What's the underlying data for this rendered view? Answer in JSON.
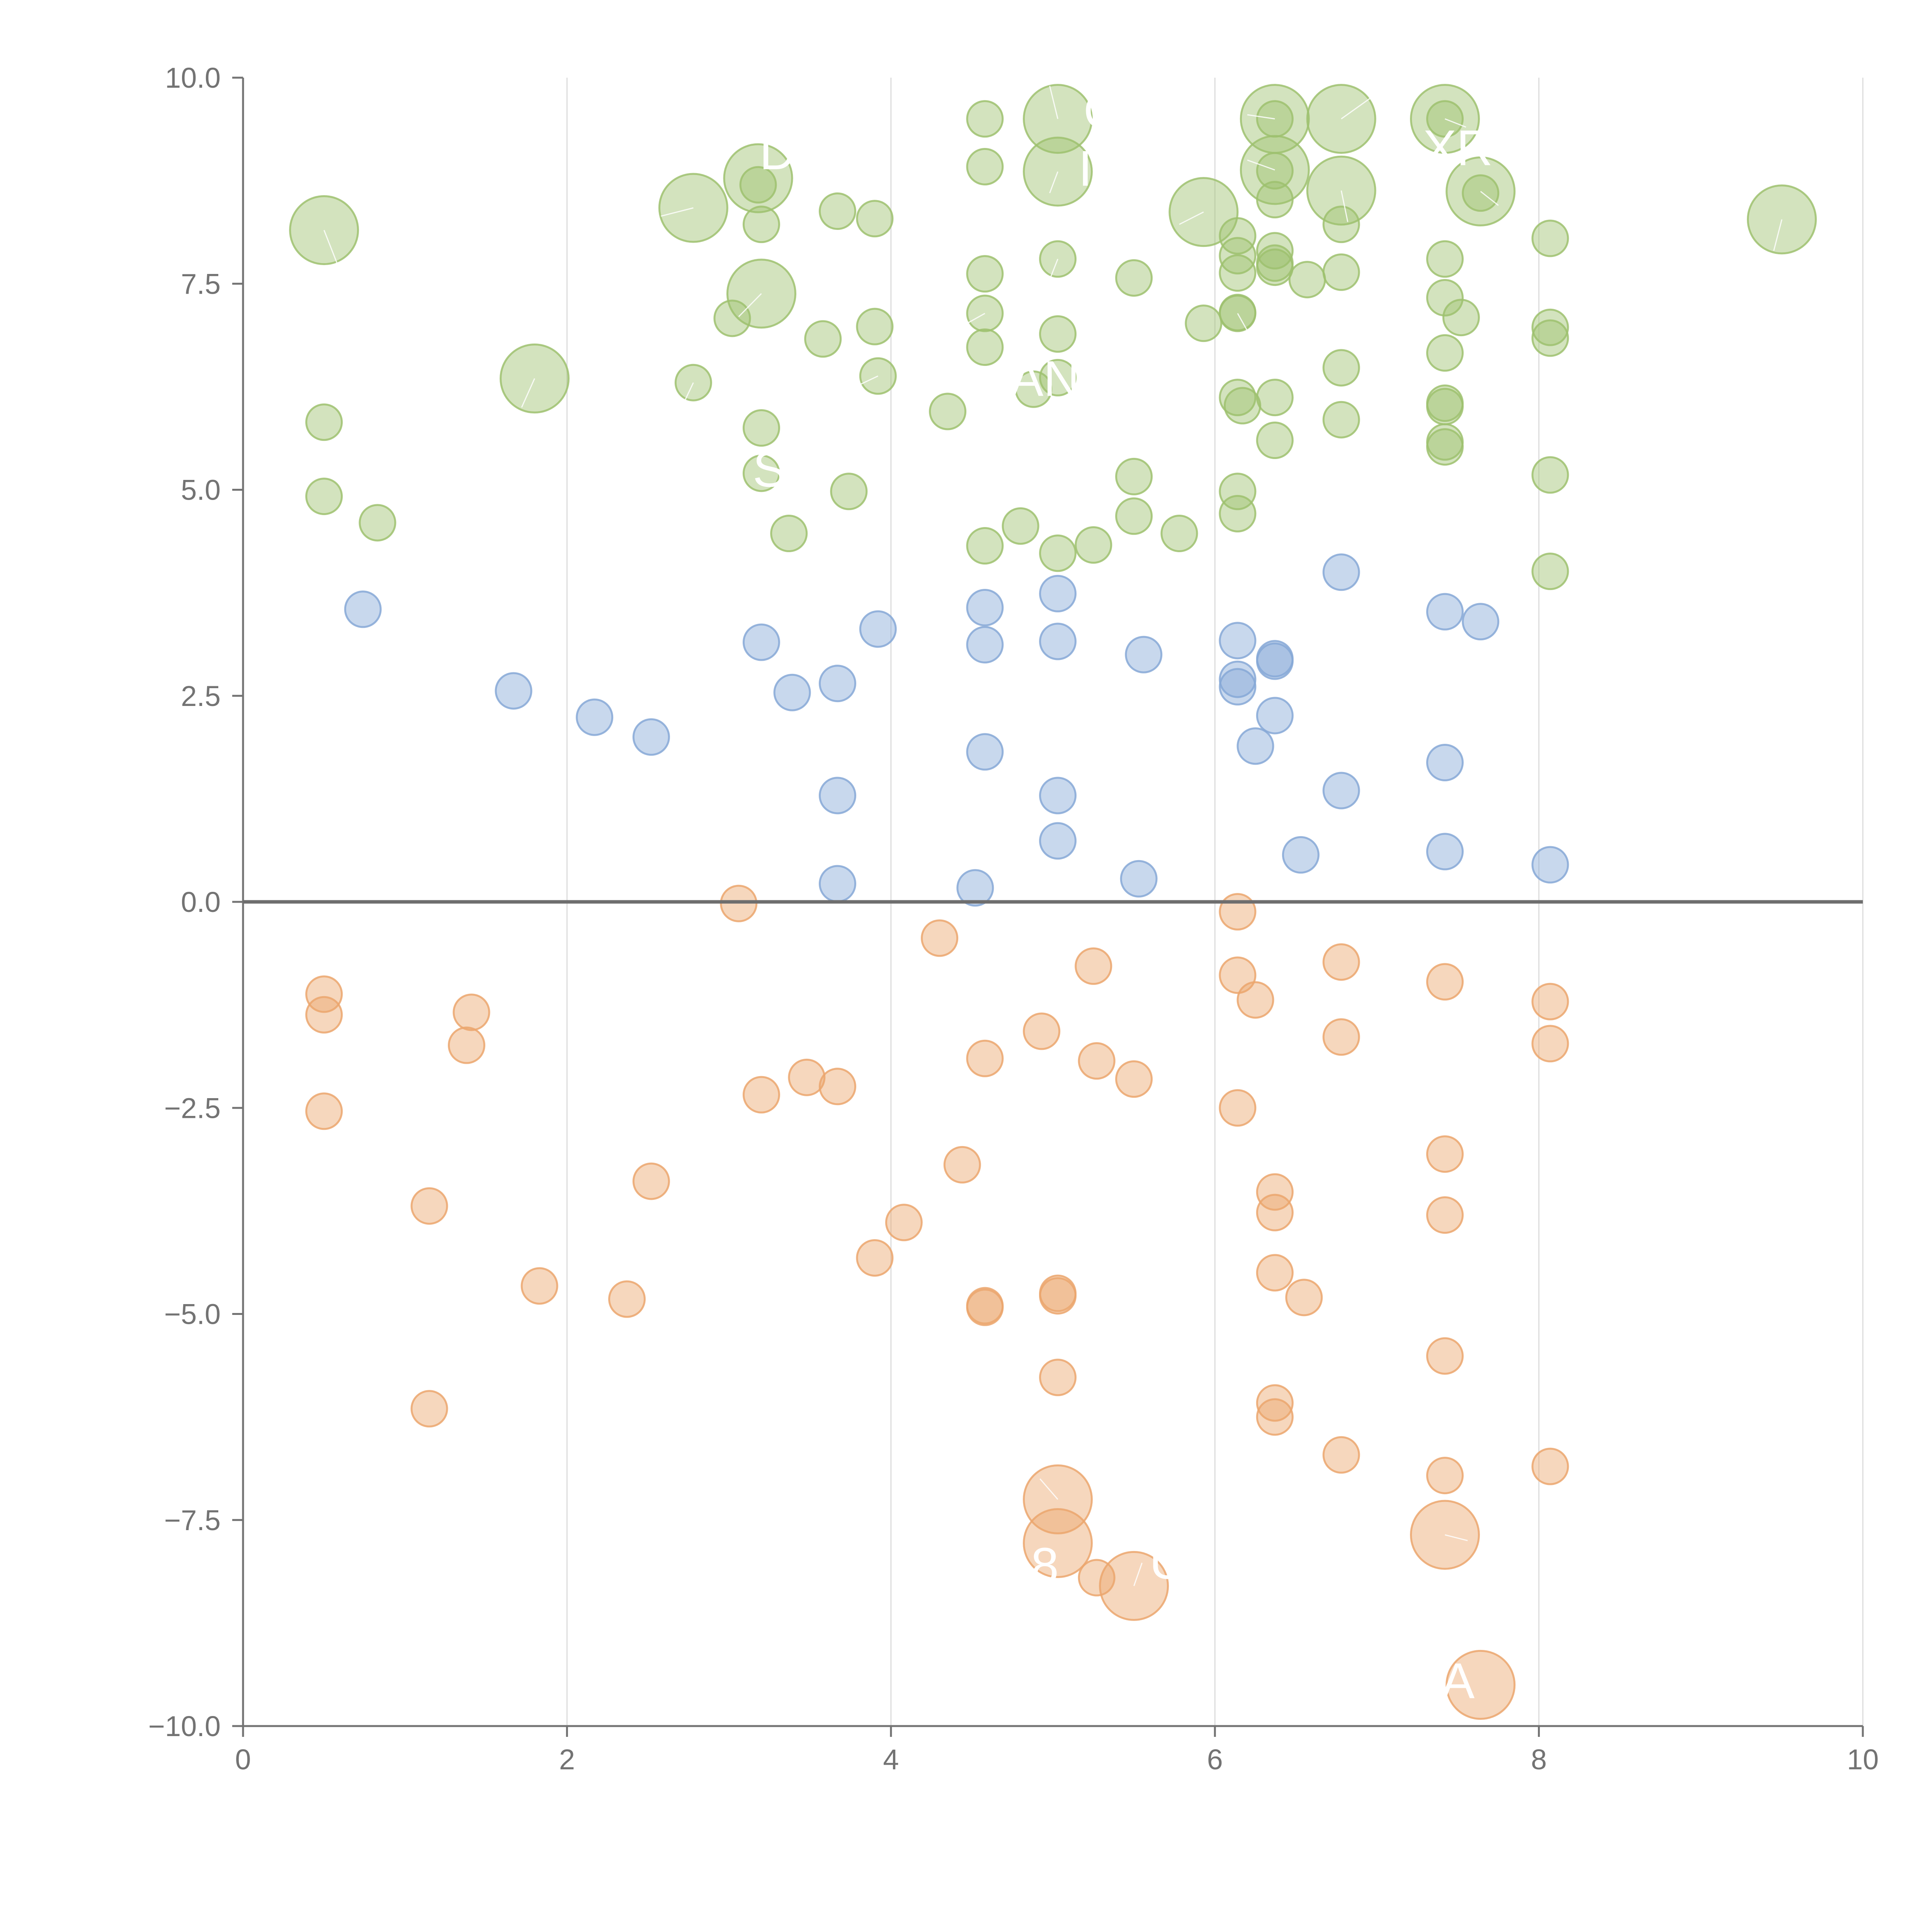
{
  "chart_data": {
    "type": "scatter",
    "title": "",
    "xlabel": "",
    "ylabel": "",
    "xlim": [
      0,
      10
    ],
    "ylim": [
      -10,
      10
    ],
    "x_ticks": [
      0,
      2,
      4,
      6,
      8,
      10
    ],
    "y_ticks": [
      -10,
      -7.5,
      -5,
      -2.5,
      0,
      2.5,
      5,
      7.5,
      10
    ],
    "x_tick_labels": [
      "0",
      "2",
      "4",
      "6",
      "8",
      "10"
    ],
    "y_tick_labels": [
      "−10.0",
      "−7.5",
      "−5.0",
      "−2.5",
      "0.0",
      "2.5",
      "5.0",
      "7.5",
      "10.0"
    ],
    "grid": "vertical",
    "zero_line": true,
    "series": [
      {
        "color": "#9dc16e",
        "points": [
          [
            0.5,
            8.15,
            "l"
          ],
          [
            0.5,
            5.82
          ],
          [
            0.5,
            4.92
          ],
          [
            0.83,
            4.6
          ],
          [
            1.8,
            6.35,
            "l"
          ],
          [
            2.78,
            8.42,
            "l"
          ],
          [
            2.78,
            6.3
          ],
          [
            3.02,
            7.08
          ],
          [
            3.18,
            8.78,
            "l"
          ],
          [
            3.18,
            8.7
          ],
          [
            3.2,
            8.22
          ],
          [
            3.2,
            7.38,
            "l"
          ],
          [
            3.2,
            5.75
          ],
          [
            3.2,
            5.2
          ],
          [
            3.37,
            4.47
          ],
          [
            3.58,
            6.83
          ],
          [
            3.67,
            8.38
          ],
          [
            3.74,
            4.98
          ],
          [
            3.9,
            8.29
          ],
          [
            3.9,
            6.98
          ],
          [
            3.92,
            6.38
          ],
          [
            4.35,
            5.95
          ],
          [
            4.58,
            9.5
          ],
          [
            4.58,
            8.92
          ],
          [
            4.58,
            7.62
          ],
          [
            4.58,
            7.14
          ],
          [
            4.58,
            6.73
          ],
          [
            4.58,
            4.32
          ],
          [
            4.8,
            4.56
          ],
          [
            4.88,
            6.22
          ],
          [
            5.03,
            9.5,
            "l"
          ],
          [
            5.03,
            8.86,
            "l"
          ],
          [
            5.03,
            7.8
          ],
          [
            5.03,
            6.89
          ],
          [
            5.03,
            6.36
          ],
          [
            5.03,
            4.23
          ],
          [
            5.25,
            4.33
          ],
          [
            5.5,
            7.57
          ],
          [
            5.5,
            5.16
          ],
          [
            5.5,
            4.68
          ],
          [
            5.78,
            4.47
          ],
          [
            5.93,
            8.37,
            "l"
          ],
          [
            5.93,
            7.02
          ],
          [
            6.14,
            8.08
          ],
          [
            6.14,
            7.84
          ],
          [
            6.14,
            7.63
          ],
          [
            6.14,
            7.15
          ],
          [
            6.14,
            7.14
          ],
          [
            6.14,
            6.12
          ],
          [
            6.14,
            4.98
          ],
          [
            6.14,
            4.71
          ],
          [
            6.17,
            6.02
          ],
          [
            6.37,
            9.5,
            "l"
          ],
          [
            6.37,
            9.5
          ],
          [
            6.37,
            8.88,
            "l"
          ],
          [
            6.37,
            8.87
          ],
          [
            6.37,
            8.52
          ],
          [
            6.37,
            7.9
          ],
          [
            6.37,
            7.75
          ],
          [
            6.37,
            7.7
          ],
          [
            6.37,
            6.12
          ],
          [
            6.37,
            5.6
          ],
          [
            6.57,
            7.55
          ],
          [
            6.78,
            9.5,
            "l"
          ],
          [
            6.78,
            8.63,
            "l"
          ],
          [
            6.78,
            8.22
          ],
          [
            6.78,
            7.64
          ],
          [
            6.78,
            6.48
          ],
          [
            6.78,
            5.85
          ],
          [
            7.42,
            9.5,
            "l"
          ],
          [
            7.42,
            9.5
          ],
          [
            7.42,
            7.8
          ],
          [
            7.42,
            7.33
          ],
          [
            7.42,
            6.66
          ],
          [
            7.42,
            6.05
          ],
          [
            7.42,
            6.01
          ],
          [
            7.42,
            5.58
          ],
          [
            7.42,
            5.52
          ],
          [
            7.52,
            7.09
          ],
          [
            7.64,
            8.62,
            "l"
          ],
          [
            7.64,
            8.6
          ],
          [
            8.07,
            8.05
          ],
          [
            8.07,
            6.97
          ],
          [
            8.07,
            6.84
          ],
          [
            8.07,
            5.18
          ],
          [
            8.07,
            4.01
          ],
          [
            9.5,
            8.28,
            "l"
          ]
        ]
      },
      {
        "color": "#86a8d6",
        "points": [
          [
            0.74,
            3.55
          ],
          [
            1.67,
            2.56
          ],
          [
            2.17,
            2.24
          ],
          [
            2.52,
            2.0
          ],
          [
            3.2,
            3.15
          ],
          [
            3.39,
            2.54
          ],
          [
            3.67,
            2.65
          ],
          [
            3.67,
            1.29
          ],
          [
            3.67,
            0.22
          ],
          [
            3.92,
            3.31
          ],
          [
            4.52,
            0.17
          ],
          [
            4.58,
            3.57
          ],
          [
            4.58,
            3.12
          ],
          [
            4.58,
            1.82
          ],
          [
            5.03,
            3.74
          ],
          [
            5.03,
            3.16
          ],
          [
            5.03,
            1.29
          ],
          [
            5.03,
            0.74
          ],
          [
            5.53,
            0.28
          ],
          [
            5.56,
            3.0
          ],
          [
            6.14,
            3.17
          ],
          [
            6.14,
            2.7
          ],
          [
            6.14,
            2.61
          ],
          [
            6.25,
            1.89
          ],
          [
            6.37,
            2.95
          ],
          [
            6.37,
            2.92
          ],
          [
            6.37,
            2.26
          ],
          [
            6.53,
            0.57
          ],
          [
            6.78,
            4.0
          ],
          [
            6.78,
            1.35
          ],
          [
            7.42,
            3.52
          ],
          [
            7.42,
            1.69
          ],
          [
            7.42,
            0.61
          ],
          [
            7.64,
            3.4
          ],
          [
            8.07,
            0.45
          ]
        ]
      },
      {
        "color": "#eba66d",
        "points": [
          [
            0.5,
            -1.12
          ],
          [
            0.5,
            -1.37
          ],
          [
            0.5,
            -2.54
          ],
          [
            1.15,
            -3.69
          ],
          [
            1.15,
            -6.15
          ],
          [
            1.38,
            -1.74
          ],
          [
            1.41,
            -1.34
          ],
          [
            1.83,
            -4.66
          ],
          [
            2.37,
            -4.82
          ],
          [
            2.52,
            -3.39
          ],
          [
            3.06,
            -0.02
          ],
          [
            3.2,
            -2.34
          ],
          [
            3.48,
            -2.13
          ],
          [
            3.67,
            -2.24
          ],
          [
            3.9,
            -4.32
          ],
          [
            4.08,
            -3.89
          ],
          [
            4.3,
            -0.44
          ],
          [
            4.44,
            -3.19
          ],
          [
            4.58,
            -1.9
          ],
          [
            4.58,
            -4.9
          ],
          [
            4.58,
            -4.92
          ],
          [
            4.93,
            -1.57
          ],
          [
            5.03,
            -4.75
          ],
          [
            5.03,
            -4.78
          ],
          [
            5.03,
            -5.77
          ],
          [
            5.03,
            -7.25,
            "l"
          ],
          [
            5.03,
            -7.78,
            "l"
          ],
          [
            5.25,
            -0.78
          ],
          [
            5.27,
            -1.93
          ],
          [
            5.27,
            -8.2
          ],
          [
            5.5,
            -2.15
          ],
          [
            5.5,
            -8.3,
            "l"
          ],
          [
            6.14,
            -0.12
          ],
          [
            6.14,
            -0.89
          ],
          [
            6.14,
            -2.5
          ],
          [
            6.25,
            -1.19
          ],
          [
            6.37,
            -3.52
          ],
          [
            6.37,
            -3.77
          ],
          [
            6.37,
            -4.5
          ],
          [
            6.37,
            -6.08
          ],
          [
            6.37,
            -6.25
          ],
          [
            6.55,
            -4.8
          ],
          [
            6.78,
            -0.73
          ],
          [
            6.78,
            -1.64
          ],
          [
            6.78,
            -6.71
          ],
          [
            7.42,
            -0.97
          ],
          [
            7.42,
            -3.06
          ],
          [
            7.42,
            -3.8
          ],
          [
            7.42,
            -5.51
          ],
          [
            7.42,
            -6.96
          ],
          [
            7.42,
            -7.68,
            "l"
          ],
          [
            7.64,
            -9.5,
            "l"
          ],
          [
            8.07,
            -1.21
          ],
          [
            8.07,
            -1.72
          ],
          [
            8.07,
            -6.85
          ]
        ]
      }
    ],
    "labels": [
      {
        "text": "C",
        "x": 5.3,
        "y": 9.55
      },
      {
        "text": "D",
        "x": 3.3,
        "y": 9.05
      },
      {
        "text": "XR",
        "x": 7.5,
        "y": 9.1
      },
      {
        "text": "I",
        "x": 5.2,
        "y": 8.85
      },
      {
        "text": "AN",
        "x": 4.95,
        "y": 6.3
      },
      {
        "text": "S",
        "x": 3.25,
        "y": 5.2
      },
      {
        "text": "8",
        "x": 4.95,
        "y": -8.1
      },
      {
        "text": "UI",
        "x": 5.75,
        "y": -8.05
      },
      {
        "text": "A",
        "x": 7.5,
        "y": -9.5
      }
    ],
    "leaders": [
      [
        0.5,
        8.15,
        0.58,
        7.75
      ],
      [
        1.8,
        6.35,
        1.72,
        6.0
      ],
      [
        2.78,
        8.42,
        2.58,
        8.32
      ],
      [
        2.78,
        6.3,
        2.72,
        6.05
      ],
      [
        3.2,
        7.38,
        3.06,
        7.1
      ],
      [
        4.58,
        7.14,
        4.38,
        6.92
      ],
      [
        3.92,
        6.38,
        3.78,
        6.25
      ],
      [
        5.03,
        9.5,
        4.98,
        9.9
      ],
      [
        5.03,
        8.86,
        4.98,
        8.6
      ],
      [
        5.03,
        7.8,
        4.98,
        7.55
      ],
      [
        5.93,
        8.37,
        5.78,
        8.22
      ],
      [
        6.37,
        9.5,
        6.2,
        9.55
      ],
      [
        6.37,
        8.88,
        6.2,
        9.0
      ],
      [
        6.78,
        9.5,
        6.98,
        9.78
      ],
      [
        6.78,
        8.63,
        6.82,
        8.25
      ],
      [
        7.42,
        9.5,
        7.55,
        9.4
      ],
      [
        7.64,
        8.62,
        7.75,
        8.45
      ],
      [
        9.5,
        8.28,
        9.45,
        7.9
      ],
      [
        6.14,
        7.14,
        6.22,
        6.86
      ],
      [
        5.03,
        -7.25,
        4.92,
        -7.0
      ],
      [
        7.42,
        -7.68,
        7.56,
        -7.75
      ],
      [
        5.5,
        -8.3,
        5.55,
        -8.02
      ]
    ]
  }
}
